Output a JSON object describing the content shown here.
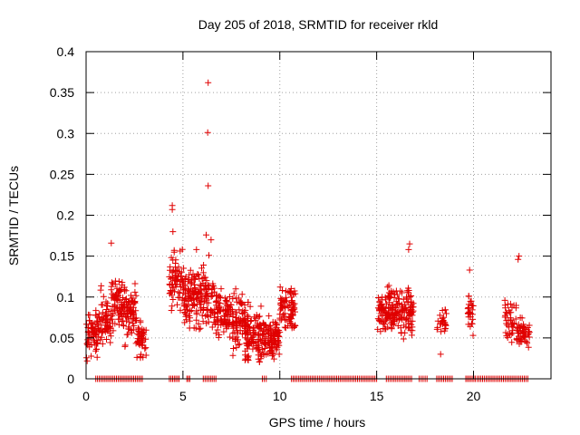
{
  "chart_data": {
    "type": "scatter",
    "title": "Day 205 of 2018, SRMTID for receiver rkld",
    "xlabel": "GPS time / hours",
    "ylabel": "SRMTID / TECUs",
    "xlim": [
      0,
      24
    ],
    "ylim": [
      0,
      0.4
    ],
    "xticks": [
      0,
      5,
      10,
      15,
      20
    ],
    "yticks": [
      0,
      0.05,
      0.1,
      0.15,
      0.2,
      0.25,
      0.3,
      0.35,
      0.4
    ],
    "xtick_labels": [
      "0",
      "5",
      "10",
      "15",
      "20"
    ],
    "ytick_labels": [
      "0",
      "0.05",
      "0.1",
      "0.15",
      "0.2",
      "0.25",
      "0.3",
      "0.35",
      "0.4"
    ],
    "grid": true,
    "marker": "+",
    "series_color": "#e00000",
    "clusters": [
      {
        "x": [
          0.0,
          0.6
        ],
        "center": 0.05,
        "spread": 0.025,
        "count": 60
      },
      {
        "x": [
          0.5,
          1.3
        ],
        "center": 0.07,
        "spread": 0.03,
        "count": 70
      },
      {
        "x": [
          1.3,
          2.0
        ],
        "center": 0.09,
        "spread": 0.03,
        "count": 80
      },
      {
        "x": [
          2.0,
          2.6
        ],
        "center": 0.08,
        "spread": 0.03,
        "count": 70
      },
      {
        "x": [
          2.6,
          3.1
        ],
        "center": 0.05,
        "spread": 0.02,
        "count": 45
      },
      {
        "x": [
          4.3,
          5.0
        ],
        "center": 0.12,
        "spread": 0.03,
        "count": 70
      },
      {
        "x": [
          5.0,
          5.7
        ],
        "center": 0.1,
        "spread": 0.035,
        "count": 85
      },
      {
        "x": [
          5.7,
          6.6
        ],
        "center": 0.1,
        "spread": 0.035,
        "count": 90
      },
      {
        "x": [
          6.6,
          7.5
        ],
        "center": 0.08,
        "spread": 0.025,
        "count": 90
      },
      {
        "x": [
          7.5,
          8.4
        ],
        "center": 0.07,
        "spread": 0.03,
        "count": 90
      },
      {
        "x": [
          8.2,
          9.2
        ],
        "center": 0.05,
        "spread": 0.03,
        "count": 110
      },
      {
        "x": [
          9.2,
          10.0
        ],
        "center": 0.05,
        "spread": 0.02,
        "count": 100
      },
      {
        "x": [
          10.0,
          10.8
        ],
        "center": 0.085,
        "spread": 0.025,
        "count": 80
      },
      {
        "x": [
          15.0,
          15.9
        ],
        "center": 0.08,
        "spread": 0.025,
        "count": 100
      },
      {
        "x": [
          15.9,
          16.9
        ],
        "center": 0.085,
        "spread": 0.03,
        "count": 110
      },
      {
        "x": [
          18.1,
          18.6
        ],
        "center": 0.07,
        "spread": 0.015,
        "count": 25
      },
      {
        "x": [
          19.7,
          20.0
        ],
        "center": 0.08,
        "spread": 0.02,
        "count": 25
      },
      {
        "x": [
          21.6,
          22.2
        ],
        "center": 0.07,
        "spread": 0.02,
        "count": 40
      },
      {
        "x": [
          22.2,
          22.9
        ],
        "center": 0.055,
        "spread": 0.015,
        "count": 55
      }
    ],
    "outliers": [
      {
        "x": 6.3,
        "y": 0.362
      },
      {
        "x": 6.28,
        "y": 0.301
      },
      {
        "x": 6.3,
        "y": 0.236
      },
      {
        "x": 4.45,
        "y": 0.212
      },
      {
        "x": 4.45,
        "y": 0.207
      },
      {
        "x": 4.48,
        "y": 0.18
      },
      {
        "x": 1.3,
        "y": 0.166
      },
      {
        "x": 6.2,
        "y": 0.176
      },
      {
        "x": 6.45,
        "y": 0.17
      },
      {
        "x": 5.7,
        "y": 0.158
      },
      {
        "x": 16.7,
        "y": 0.165
      },
      {
        "x": 16.65,
        "y": 0.158
      },
      {
        "x": 22.35,
        "y": 0.15
      },
      {
        "x": 22.3,
        "y": 0.146
      },
      {
        "x": 19.8,
        "y": 0.133
      },
      {
        "x": 18.3,
        "y": 0.03
      },
      {
        "x": 8.9,
        "y": 0.024
      }
    ],
    "zero_ranges": [
      [
        0.5,
        2.9
      ],
      [
        4.3,
        4.8
      ],
      [
        5.2,
        5.35
      ],
      [
        6.05,
        6.7
      ],
      [
        9.1,
        9.3
      ],
      [
        10.6,
        15.0
      ],
      [
        15.5,
        16.8
      ],
      [
        17.2,
        17.6
      ],
      [
        18.1,
        18.9
      ],
      [
        19.6,
        20.1
      ],
      [
        20.2,
        22.8
      ]
    ]
  }
}
